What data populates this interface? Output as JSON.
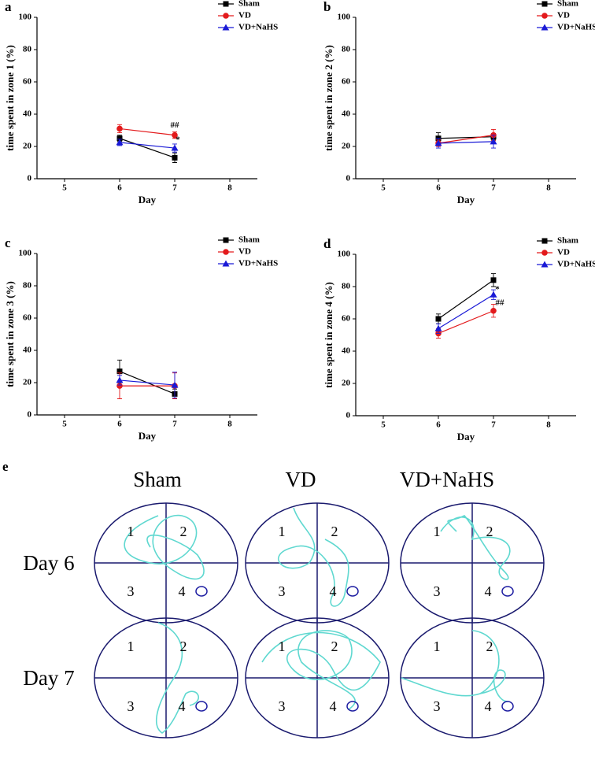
{
  "chart_data": [
    {
      "type": "line",
      "panel_label": "a",
      "y_label": "time spent in zone 1 (%)",
      "x_label": "Day",
      "x": [
        6,
        7
      ],
      "xlim": [
        4.5,
        8.5
      ],
      "xticks": [
        5,
        6,
        7,
        8
      ],
      "ylim": [
        0,
        100
      ],
      "yticks": [
        0,
        20,
        40,
        60,
        80,
        100
      ],
      "legend": "upper right",
      "annotations": [
        "##",
        "*"
      ],
      "series": [
        {
          "name": "Sham",
          "color": "#000000",
          "marker": "square",
          "values": [
            25,
            13
          ],
          "errors": [
            2,
            3
          ]
        },
        {
          "name": "VD",
          "color": "#e31a1c",
          "marker": "circle",
          "values": [
            31,
            27
          ],
          "errors": [
            2.5,
            2
          ]
        },
        {
          "name": "VD+NaHS",
          "color": "#1a1ad6",
          "marker": "triangle",
          "values": [
            22.5,
            19
          ],
          "errors": [
            2,
            2.5
          ]
        }
      ]
    },
    {
      "type": "line",
      "panel_label": "b",
      "y_label": "time spent in zone 2 (%)",
      "x_label": "Day",
      "x": [
        6,
        7
      ],
      "xlim": [
        4.5,
        8.5
      ],
      "xticks": [
        5,
        6,
        7,
        8
      ],
      "ylim": [
        0,
        100
      ],
      "yticks": [
        0,
        20,
        40,
        60,
        80,
        100
      ],
      "legend": "upper right",
      "annotations": [],
      "series": [
        {
          "name": "Sham",
          "color": "#000000",
          "marker": "square",
          "values": [
            25,
            26
          ],
          "errors": [
            3.5,
            2
          ]
        },
        {
          "name": "VD",
          "color": "#e31a1c",
          "marker": "circle",
          "values": [
            22,
            27
          ],
          "errors": [
            2,
            3.5
          ]
        },
        {
          "name": "VD+NaHS",
          "color": "#1a1ad6",
          "marker": "triangle",
          "values": [
            22,
            23
          ],
          "errors": [
            3,
            4
          ]
        }
      ]
    },
    {
      "type": "line",
      "panel_label": "c",
      "y_label": "time spent in zone 3 (%)",
      "x_label": "Day",
      "x": [
        6,
        7
      ],
      "xlim": [
        4.5,
        8.5
      ],
      "xticks": [
        5,
        6,
        7,
        8
      ],
      "ylim": [
        0,
        100
      ],
      "yticks": [
        0,
        20,
        40,
        60,
        80,
        100
      ],
      "legend": "upper right",
      "annotations": [],
      "series": [
        {
          "name": "Sham",
          "color": "#000000",
          "marker": "square",
          "values": [
            27,
            13
          ],
          "errors": [
            7,
            3
          ]
        },
        {
          "name": "VD",
          "color": "#e31a1c",
          "marker": "circle",
          "values": [
            18,
            18
          ],
          "errors": [
            8,
            8
          ]
        },
        {
          "name": "VD+NaHS",
          "color": "#1a1ad6",
          "marker": "triangle",
          "values": [
            21.5,
            18.5
          ],
          "errors": [
            3,
            8
          ]
        }
      ]
    },
    {
      "type": "line",
      "panel_label": "d",
      "y_label": "time spent in zone 4 (%)",
      "x_label": "Day",
      "x": [
        6,
        7
      ],
      "xlim": [
        4.5,
        8.5
      ],
      "xticks": [
        5,
        6,
        7,
        8
      ],
      "ylim": [
        0,
        100
      ],
      "yticks": [
        0,
        20,
        40,
        60,
        80,
        100
      ],
      "legend": "upper right",
      "annotations": [
        "*",
        "##"
      ],
      "series": [
        {
          "name": "Sham",
          "color": "#000000",
          "marker": "square",
          "values": [
            60,
            84
          ],
          "errors": [
            3,
            4
          ]
        },
        {
          "name": "VD",
          "color": "#e31a1c",
          "marker": "circle",
          "values": [
            51,
            65
          ],
          "errors": [
            3,
            4
          ]
        },
        {
          "name": "VD+NaHS",
          "color": "#1a1ad6",
          "marker": "triangle",
          "values": [
            54,
            75
          ],
          "errors": [
            3,
            3
          ]
        }
      ]
    }
  ],
  "panel_e": {
    "label": "e",
    "columns": [
      "Sham",
      "VD",
      "VD+NaHS"
    ],
    "rows": [
      "Day 6",
      "Day 7"
    ],
    "quadrants": [
      "1",
      "2",
      "3",
      "4"
    ]
  }
}
